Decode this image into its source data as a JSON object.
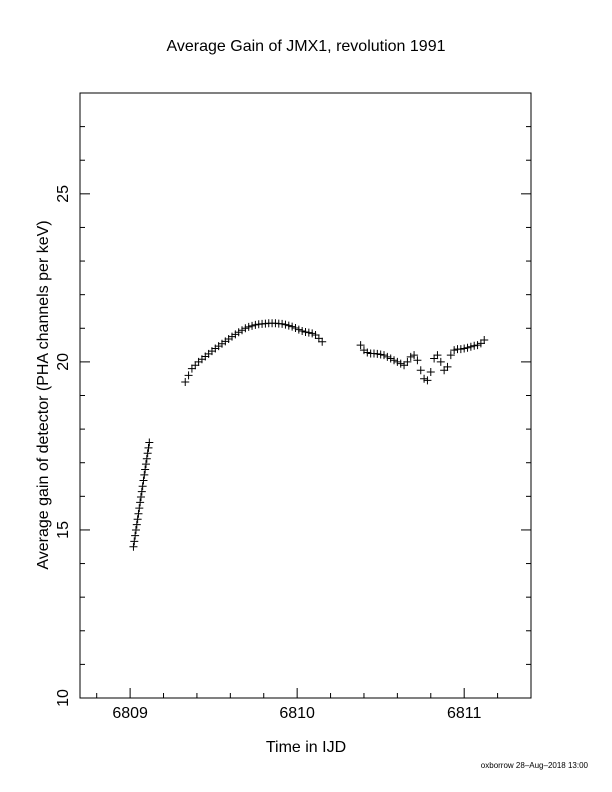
{
  "chart_data": {
    "type": "scatter",
    "title": "Average Gain of JMX1, revolution 1991",
    "x_label": "Time in IJD",
    "y_label": "Average gain of detector (PHA channels per keV)",
    "footer": "oxborrow 28–Aug–2018 13:00",
    "marker": "+",
    "color": "#000000",
    "xlim": [
      6808.7,
      6811.4
    ],
    "ylim": [
      10,
      28
    ],
    "xticks": [
      6809,
      6810,
      6811
    ],
    "yticks": [
      10,
      15,
      20,
      25
    ],
    "xminorticks": [
      6808.8,
      6809.2,
      6809.4,
      6809.6,
      6809.8,
      6810.2,
      6810.4,
      6810.6,
      6810.8,
      6811.2
    ],
    "yminorticks": [
      11,
      12,
      13,
      14,
      16,
      17,
      18,
      19,
      21,
      22,
      23,
      24,
      26,
      27
    ],
    "x": [
      6809.02,
      6809.025,
      6809.03,
      6809.035,
      6809.04,
      6809.045,
      6809.05,
      6809.055,
      6809.06,
      6809.065,
      6809.07,
      6809.075,
      6809.08,
      6809.085,
      6809.09,
      6809.095,
      6809.1,
      6809.105,
      6809.11,
      6809.115,
      6809.33,
      6809.35,
      6809.37,
      6809.39,
      6809.41,
      6809.43,
      6809.45,
      6809.47,
      6809.49,
      6809.51,
      6809.53,
      6809.55,
      6809.57,
      6809.59,
      6809.61,
      6809.63,
      6809.65,
      6809.67,
      6809.69,
      6809.71,
      6809.73,
      6809.75,
      6809.77,
      6809.79,
      6809.81,
      6809.83,
      6809.85,
      6809.87,
      6809.89,
      6809.91,
      6809.93,
      6809.95,
      6809.97,
      6809.99,
      6810.01,
      6810.03,
      6810.05,
      6810.07,
      6810.09,
      6810.11,
      6810.13,
      6810.15,
      6810.38,
      6810.4,
      6810.42,
      6810.44,
      6810.46,
      6810.48,
      6810.5,
      6810.52,
      6810.54,
      6810.56,
      6810.58,
      6810.6,
      6810.62,
      6810.64,
      6810.66,
      6810.68,
      6810.7,
      6810.72,
      6810.74,
      6810.76,
      6810.78,
      6810.8,
      6810.82,
      6810.84,
      6810.86,
      6810.88,
      6810.9,
      6810.92,
      6810.94,
      6810.96,
      6810.98,
      6811.0,
      6811.02,
      6811.04,
      6811.06,
      6811.08,
      6811.1,
      6811.12
    ],
    "values": [
      14.5,
      14.66,
      14.83,
      15.0,
      15.16,
      15.32,
      15.48,
      15.65,
      15.82,
      15.98,
      16.14,
      16.3,
      16.47,
      16.64,
      16.8,
      16.96,
      17.12,
      17.28,
      17.44,
      17.6,
      19.4,
      19.6,
      19.8,
      19.9,
      20.0,
      20.08,
      20.16,
      20.24,
      20.32,
      20.4,
      20.47,
      20.54,
      20.61,
      20.68,
      20.75,
      20.82,
      20.88,
      20.94,
      21.0,
      21.04,
      21.07,
      21.1,
      21.12,
      21.13,
      21.14,
      21.15,
      21.15,
      21.15,
      21.14,
      21.13,
      21.11,
      21.08,
      21.05,
      21.01,
      20.96,
      20.92,
      20.89,
      20.87,
      20.85,
      20.8,
      20.7,
      20.6,
      20.5,
      20.35,
      20.28,
      20.25,
      20.25,
      20.24,
      20.22,
      20.2,
      20.15,
      20.1,
      20.05,
      20.0,
      19.95,
      19.9,
      20.0,
      20.15,
      20.2,
      20.05,
      19.75,
      19.5,
      19.45,
      19.7,
      20.1,
      20.2,
      20.0,
      19.75,
      19.85,
      20.2,
      20.35,
      20.38,
      20.38,
      20.4,
      20.42,
      20.45,
      20.48,
      20.5,
      20.55,
      20.65
    ]
  }
}
